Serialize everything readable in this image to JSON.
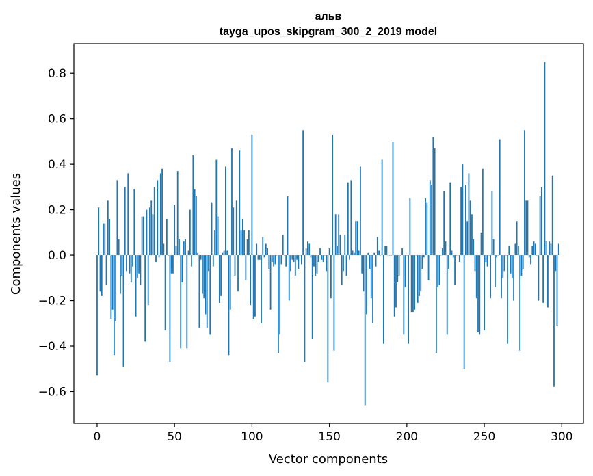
{
  "chart_data": {
    "type": "bar",
    "title": "альв",
    "subtitle": "tayga_upos_skipgram_300_2_2019 model",
    "xlabel": "Vector components",
    "ylabel": "Components values",
    "xlim": [
      -15,
      314
    ],
    "ylim": [
      -0.74,
      0.93
    ],
    "xticks": [
      0,
      50,
      100,
      150,
      200,
      250,
      300
    ],
    "xtick_labels": [
      "0",
      "50",
      "100",
      "150",
      "200",
      "250",
      "300"
    ],
    "yticks": [
      -0.6,
      -0.4,
      -0.2,
      0.0,
      0.2,
      0.4,
      0.6,
      0.8
    ],
    "ytick_labels": [
      "−0.6",
      "−0.4",
      "−0.2",
      "0.0",
      "0.2",
      "0.4",
      "0.6",
      "0.8"
    ],
    "bar_color": "#1f77b4",
    "values": [
      -0.53,
      0.21,
      -0.16,
      -0.18,
      0.14,
      0.14,
      -0.13,
      0.24,
      0.16,
      -0.28,
      -0.24,
      -0.44,
      -0.29,
      0.33,
      0.07,
      -0.17,
      -0.09,
      -0.49,
      0.3,
      -0.07,
      0.36,
      -0.08,
      -0.12,
      -0.05,
      0.29,
      -0.27,
      -0.1,
      -0.08,
      -0.13,
      0.17,
      0.17,
      -0.38,
      0.2,
      -0.22,
      0.21,
      0.24,
      0.18,
      0.3,
      -0.03,
      0.33,
      -0.01,
      0.36,
      0.38,
      0.05,
      -0.33,
      0.16,
      0.0,
      -0.47,
      -0.08,
      -0.08,
      0.22,
      0.04,
      0.37,
      0.07,
      -0.41,
      -0.12,
      0.06,
      0.07,
      -0.41,
      0.02,
      0.2,
      -0.05,
      0.44,
      0.29,
      0.26,
      0.01,
      -0.32,
      -0.02,
      -0.17,
      -0.19,
      -0.26,
      -0.32,
      -0.07,
      -0.35,
      0.23,
      -0.05,
      0.11,
      0.42,
      0.17,
      -0.21,
      -0.18,
      0.01,
      0.02,
      0.39,
      0.02,
      -0.44,
      -0.24,
      0.47,
      0.21,
      -0.09,
      0.24,
      -0.16,
      0.46,
      0.11,
      0.16,
      0.11,
      -0.11,
      0.07,
      0.11,
      -0.22,
      0.53,
      -0.28,
      -0.27,
      0.05,
      -0.02,
      -0.02,
      -0.3,
      0.08,
      -0.01,
      0.05,
      0.03,
      -0.06,
      -0.24,
      -0.03,
      -0.05,
      -0.04,
      0.0,
      -0.43,
      -0.35,
      -0.04,
      0.09,
      0.0,
      -0.05,
      0.26,
      -0.2,
      -0.07,
      -0.02,
      -0.03,
      -0.09,
      -0.02,
      -0.06,
      0.0,
      -0.04,
      0.55,
      -0.47,
      0.03,
      0.06,
      0.05,
      -0.01,
      -0.37,
      -0.05,
      -0.09,
      -0.08,
      -0.03,
      0.03,
      -0.02,
      -0.03,
      0.0,
      -0.07,
      -0.56,
      0.03,
      -0.19,
      0.53,
      -0.42,
      0.18,
      0.04,
      0.18,
      0.09,
      -0.13,
      -0.07,
      0.09,
      -0.09,
      0.32,
      -0.02,
      0.33,
      0.02,
      0.01,
      0.15,
      0.15,
      0.02,
      0.39,
      -0.08,
      -0.16,
      -0.66,
      -0.26,
      0.01,
      -0.06,
      -0.19,
      -0.3,
      0.01,
      -0.05,
      0.08,
      0.02,
      0.0,
      0.42,
      -0.39,
      0.04,
      0.04,
      0.0,
      0.0,
      0.0,
      0.5,
      -0.27,
      -0.23,
      -0.12,
      -0.09,
      0.0,
      0.03,
      -0.35,
      -0.14,
      0.0,
      -0.39,
      0.25,
      -0.25,
      -0.25,
      -0.24,
      0.0,
      -0.21,
      -0.18,
      -0.16,
      -0.06,
      -0.01,
      0.25,
      0.23,
      -0.11,
      0.33,
      0.31,
      0.52,
      0.47,
      -0.43,
      -0.14,
      -0.13,
      0.0,
      0.03,
      0.28,
      0.06,
      -0.35,
      -0.06,
      0.32,
      0.02,
      -0.01,
      -0.13,
      0.0,
      0.0,
      -0.03,
      0.3,
      0.4,
      -0.5,
      0.31,
      0.15,
      0.36,
      0.24,
      0.18,
      0.07,
      -0.07,
      -0.19,
      -0.34,
      -0.35,
      0.1,
      0.38,
      -0.33,
      -0.03,
      -0.05,
      0.0,
      -0.19,
      0.28,
      0.07,
      -0.14,
      -0.01,
      0.0,
      0.51,
      -0.19,
      -0.1,
      -0.07,
      0.0,
      -0.39,
      0.04,
      -0.08,
      -0.1,
      -0.2,
      0.05,
      0.15,
      0.04,
      -0.42,
      -0.09,
      -0.06,
      0.55,
      0.24,
      0.24,
      -0.01,
      -0.04,
      0.04,
      0.06,
      0.05,
      0.0,
      -0.2,
      0.26,
      0.3,
      -0.21,
      0.85,
      0.06,
      -0.23,
      0.06,
      0.05,
      0.35,
      -0.58,
      -0.07,
      -0.31,
      0.05
    ]
  }
}
